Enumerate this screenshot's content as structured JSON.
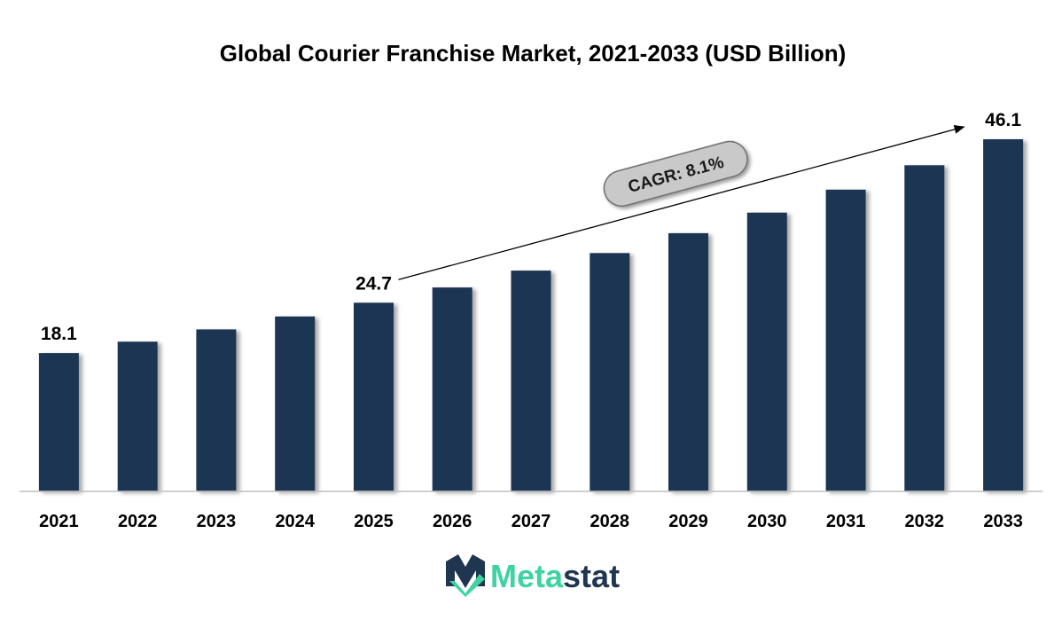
{
  "chart_data": {
    "type": "bar",
    "title": "Global Courier Franchise Market, 2021-2033 (USD Billion)",
    "xlabel": "",
    "ylabel": "",
    "categories": [
      "2021",
      "2022",
      "2023",
      "2024",
      "2025",
      "2026",
      "2027",
      "2028",
      "2029",
      "2030",
      "2031",
      "2032",
      "2033"
    ],
    "values": [
      18.1,
      19.6,
      21.2,
      22.9,
      24.7,
      26.7,
      28.9,
      31.2,
      33.8,
      36.5,
      39.5,
      42.7,
      46.1
    ],
    "data_labels": [
      {
        "category": "2021",
        "text": "18.1"
      },
      {
        "category": "2025",
        "text": "24.7"
      },
      {
        "category": "2033",
        "text": "46.1"
      }
    ],
    "annotation": {
      "text": "CAGR: 8.1%",
      "from_category": "2025",
      "to_category": "2033"
    },
    "ylim": [
      0,
      46.1
    ],
    "grid": false,
    "legend": "none",
    "colors": {
      "bar": "#1b3553",
      "axis": "#bfbfbf",
      "badge_fill": "#c9c9c9",
      "badge_stroke": "#6b6b6b",
      "arrow": "#000000"
    }
  },
  "logo": {
    "text_part1": "Meta",
    "text_part2": "stat",
    "icon": "metastat-m-logo-icon",
    "colors": {
      "dark": "#1f3550",
      "green": "#3ed3a0"
    }
  }
}
